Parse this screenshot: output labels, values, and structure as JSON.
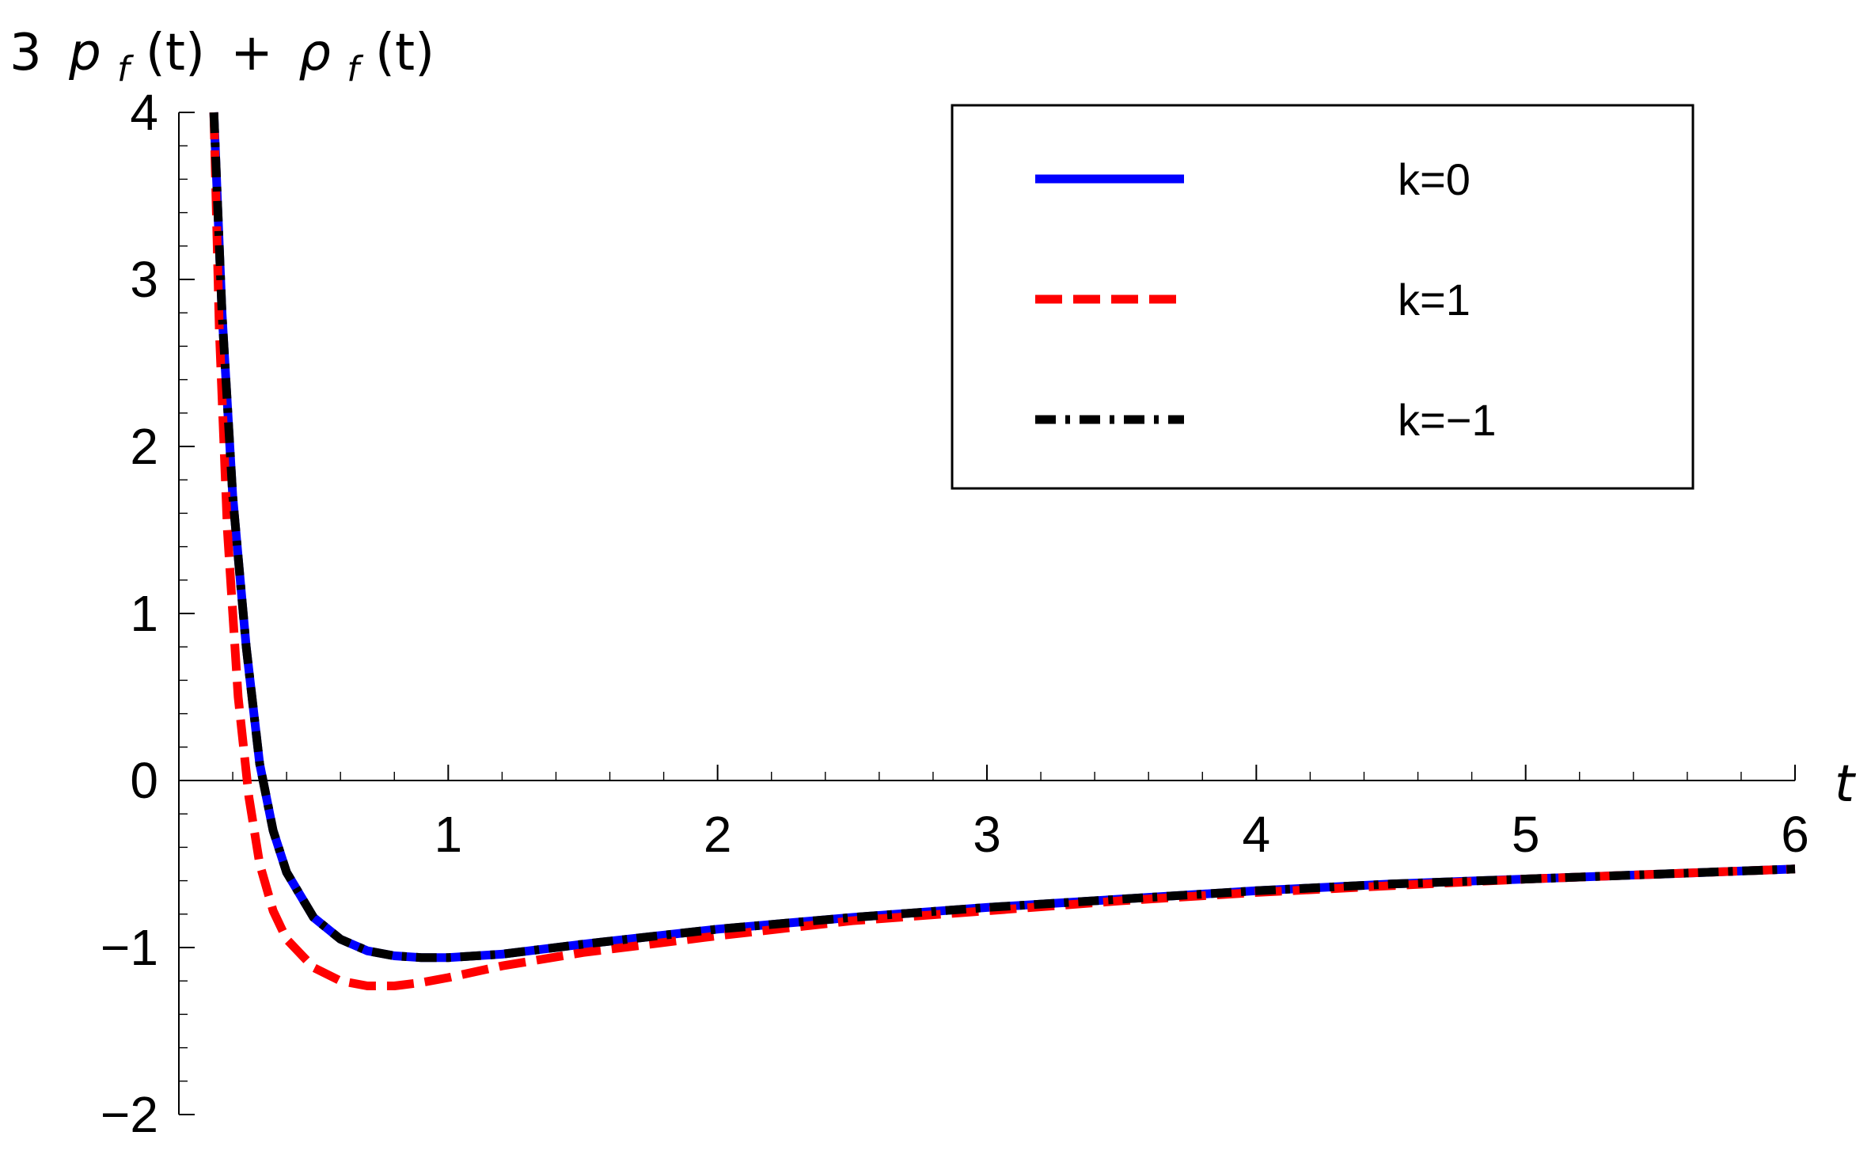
{
  "chart_data": {
    "type": "line",
    "xlabel": "t",
    "ylabel_parts": {
      "coef": "3",
      "p": "p",
      "p_sub": "f",
      "arg1": "(t)",
      "plus": "+",
      "rho": "ρ",
      "rho_sub": "f",
      "arg2": "(t)"
    },
    "xlim": [
      0,
      6
    ],
    "ylim": [
      -2,
      4
    ],
    "x_tick_labels": [
      "1",
      "2",
      "3",
      "4",
      "5",
      "6"
    ],
    "y_tick_labels": [
      "4",
      "3",
      "2",
      "1",
      "0",
      "−1",
      "−2"
    ],
    "legend_position": "top-right",
    "series": [
      {
        "name": "k=0",
        "color": "#0000ff",
        "style": "solid",
        "x": [
          0.13,
          0.16,
          0.2,
          0.25,
          0.3,
          0.35,
          0.4,
          0.5,
          0.6,
          0.7,
          0.8,
          0.9,
          1.0,
          1.2,
          1.5,
          2.0,
          2.5,
          3.0,
          3.5,
          4.0,
          4.5,
          5.0,
          5.5,
          6.0
        ],
        "y": [
          4.0,
          2.8,
          1.7,
          0.8,
          0.1,
          -0.3,
          -0.55,
          -0.82,
          -0.95,
          -1.02,
          -1.05,
          -1.06,
          -1.06,
          -1.04,
          -0.98,
          -0.89,
          -0.82,
          -0.76,
          -0.71,
          -0.66,
          -0.62,
          -0.59,
          -0.56,
          -0.53
        ]
      },
      {
        "name": "k=1",
        "color": "#ff0000",
        "style": "dashed",
        "x": [
          0.13,
          0.15,
          0.18,
          0.22,
          0.26,
          0.3,
          0.35,
          0.4,
          0.5,
          0.6,
          0.7,
          0.8,
          0.9,
          1.0,
          1.2,
          1.5,
          2.0,
          2.5,
          3.0,
          3.5,
          4.0,
          4.5,
          5.0,
          5.5,
          6.0
        ],
        "y": [
          4.0,
          2.7,
          1.5,
          0.5,
          -0.1,
          -0.5,
          -0.78,
          -0.95,
          -1.12,
          -1.2,
          -1.23,
          -1.23,
          -1.21,
          -1.18,
          -1.11,
          -1.03,
          -0.93,
          -0.84,
          -0.78,
          -0.72,
          -0.67,
          -0.63,
          -0.59,
          -0.56,
          -0.53
        ]
      },
      {
        "name": "k=−1",
        "color": "#000000",
        "style": "dash-dot",
        "x": [
          0.13,
          0.16,
          0.2,
          0.25,
          0.3,
          0.35,
          0.4,
          0.5,
          0.6,
          0.7,
          0.8,
          0.9,
          1.0,
          1.2,
          1.5,
          2.0,
          2.5,
          3.0,
          3.5,
          4.0,
          4.5,
          5.0,
          5.5,
          6.0
        ],
        "y": [
          4.0,
          2.8,
          1.7,
          0.8,
          0.1,
          -0.3,
          -0.55,
          -0.82,
          -0.95,
          -1.02,
          -1.05,
          -1.06,
          -1.06,
          -1.04,
          -0.98,
          -0.89,
          -0.82,
          -0.76,
          -0.71,
          -0.66,
          -0.62,
          -0.59,
          -0.56,
          -0.53
        ]
      }
    ]
  }
}
